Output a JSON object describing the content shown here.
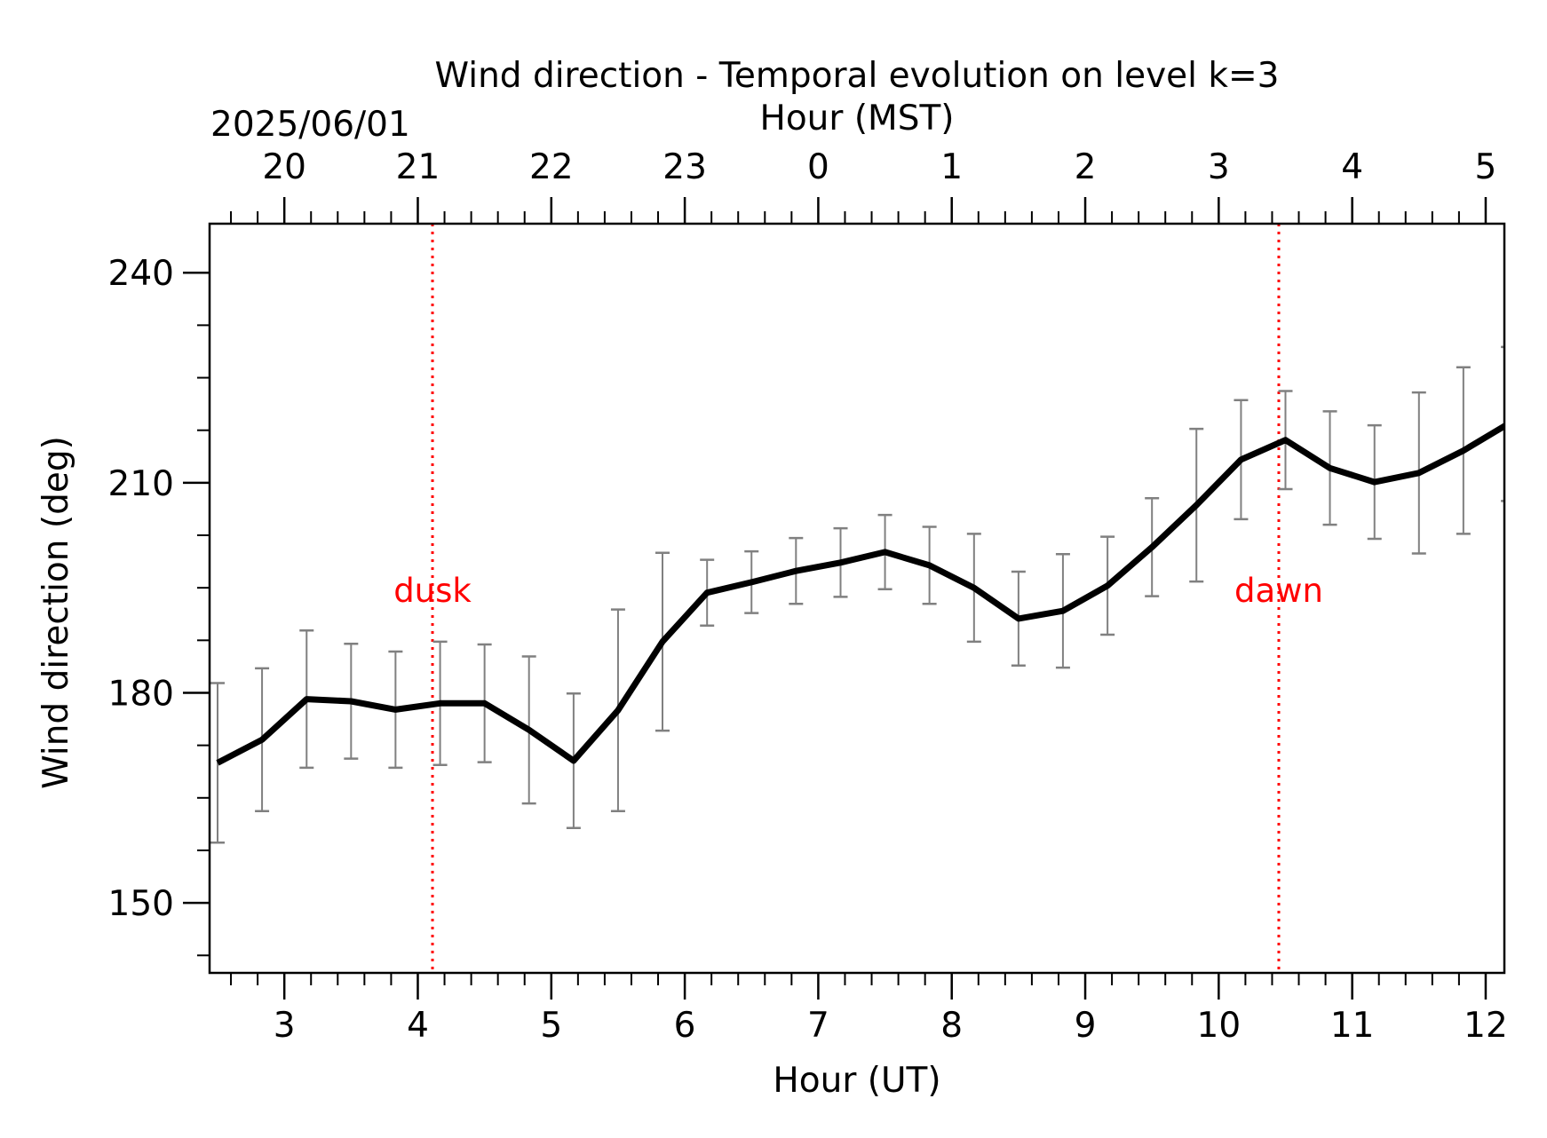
{
  "chart_data": {
    "type": "line",
    "title": "Wind direction - Temporal evolution on level k=3",
    "xlabel": "Hour (UT)",
    "ylabel": "Wind direction (deg)",
    "top_axis": {
      "label": "Hour (MST)",
      "date": "2025/06/01",
      "ticks": [
        {
          "ut": 3,
          "label": "20"
        },
        {
          "ut": 4,
          "label": "21"
        },
        {
          "ut": 5,
          "label": "22"
        },
        {
          "ut": 6,
          "label": "23"
        },
        {
          "ut": 7,
          "label": "0"
        },
        {
          "ut": 8,
          "label": "1"
        },
        {
          "ut": 9,
          "label": "2"
        },
        {
          "ut": 10,
          "label": "3"
        },
        {
          "ut": 11,
          "label": "4"
        },
        {
          "ut": 12,
          "label": "5"
        }
      ]
    },
    "xlim": [
      2.44,
      12.14
    ],
    "ylim": [
      140,
      247
    ],
    "x_ticks": [
      3,
      4,
      5,
      6,
      7,
      8,
      9,
      10,
      11,
      12
    ],
    "x_tick_labels": [
      "3",
      "4",
      "5",
      "6",
      "7",
      "8",
      "9",
      "10",
      "11",
      "12"
    ],
    "y_ticks": [
      150,
      180,
      210,
      240
    ],
    "y_tick_labels": [
      "150",
      "180",
      "210",
      "240"
    ],
    "grid": false,
    "series": [
      {
        "x": [
          2.5,
          2.833,
          3.167,
          3.5,
          3.833,
          4.167,
          4.5,
          4.833,
          5.167,
          5.5,
          5.833,
          6.167,
          6.5,
          6.833,
          7.167,
          7.5,
          7.833,
          8.167,
          8.5,
          8.833,
          9.167,
          9.5,
          9.833,
          10.167,
          10.5,
          10.833,
          11.167,
          11.5,
          11.833,
          12.167
        ],
        "y": [
          170,
          173.3,
          179.1,
          178.8,
          177.6,
          178.5,
          178.5,
          174.7,
          170.3,
          177.5,
          187.3,
          194.3,
          195.8,
          197.4,
          198.6,
          200.1,
          198.2,
          195,
          190.6,
          191.7,
          195.3,
          200.8,
          206.8,
          213.3,
          216.1,
          212.1,
          210.1,
          211.4,
          214.6,
          218.4
        ],
        "error": [
          11.4,
          10.2,
          9.8,
          8.2,
          8.3,
          8.8,
          8.4,
          10.5,
          9.6,
          14.4,
          12.7,
          4.7,
          4.4,
          4.7,
          4.9,
          5.3,
          5.5,
          7.7,
          6.7,
          8.1,
          7,
          7,
          10.9,
          8.5,
          7,
          8.1,
          8.1,
          11.5,
          11.9,
          11
        ]
      }
    ],
    "colors": {
      "line": "#000000",
      "errorbar": "#808080",
      "event_line": "#ff0000",
      "event_text": "#ff0000"
    },
    "annotations": [
      {
        "x": 4.11,
        "label": "dusk",
        "y": 193
      },
      {
        "x": 10.45,
        "label": "dawn",
        "y": 193
      }
    ]
  }
}
